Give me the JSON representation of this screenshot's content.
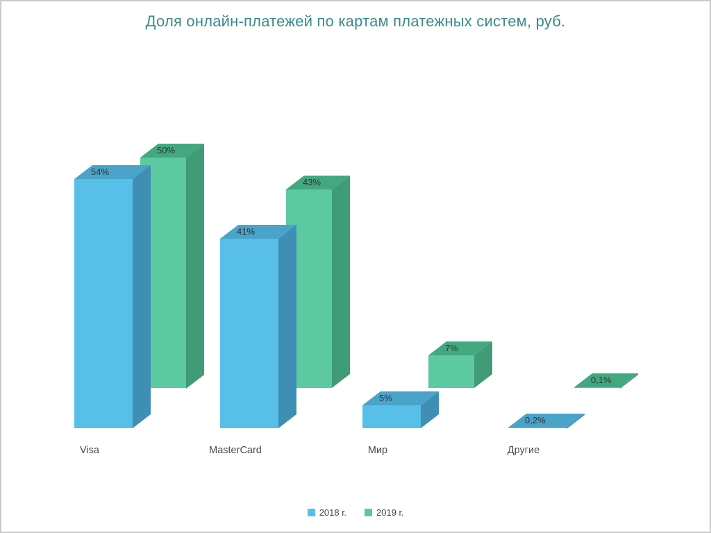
{
  "page": {
    "background": "#ffffff",
    "border_color": "#c9c9c9"
  },
  "chart_data": {
    "type": "bar",
    "variant": "3d-clustered-columns",
    "title": "Доля онлайн-платежей по картам платежных систем, руб.",
    "title_color": "#3a8b8b",
    "categories": [
      "Visa",
      "MasterCard",
      "Мир",
      "Другие"
    ],
    "series": [
      {
        "name": "2018 г.",
        "color": "#58bfe8",
        "color_top": "#4aa3c9",
        "color_side": "#3e8fb3",
        "values": [
          54,
          41,
          5,
          0.2
        ],
        "labels": [
          "54%",
          "41%",
          "5%",
          "0,2%"
        ]
      },
      {
        "name": "2019 г.",
        "color": "#5dc9a3",
        "color_top": "#42a87f",
        "color_side": "#3f9c77",
        "values": [
          50,
          43,
          7,
          0.1
        ],
        "labels": [
          "50%",
          "43%",
          "7%",
          "0,1%"
        ]
      }
    ],
    "unit": "%",
    "value_axis_visible": false,
    "grid": false,
    "legend_position": "bottom"
  }
}
